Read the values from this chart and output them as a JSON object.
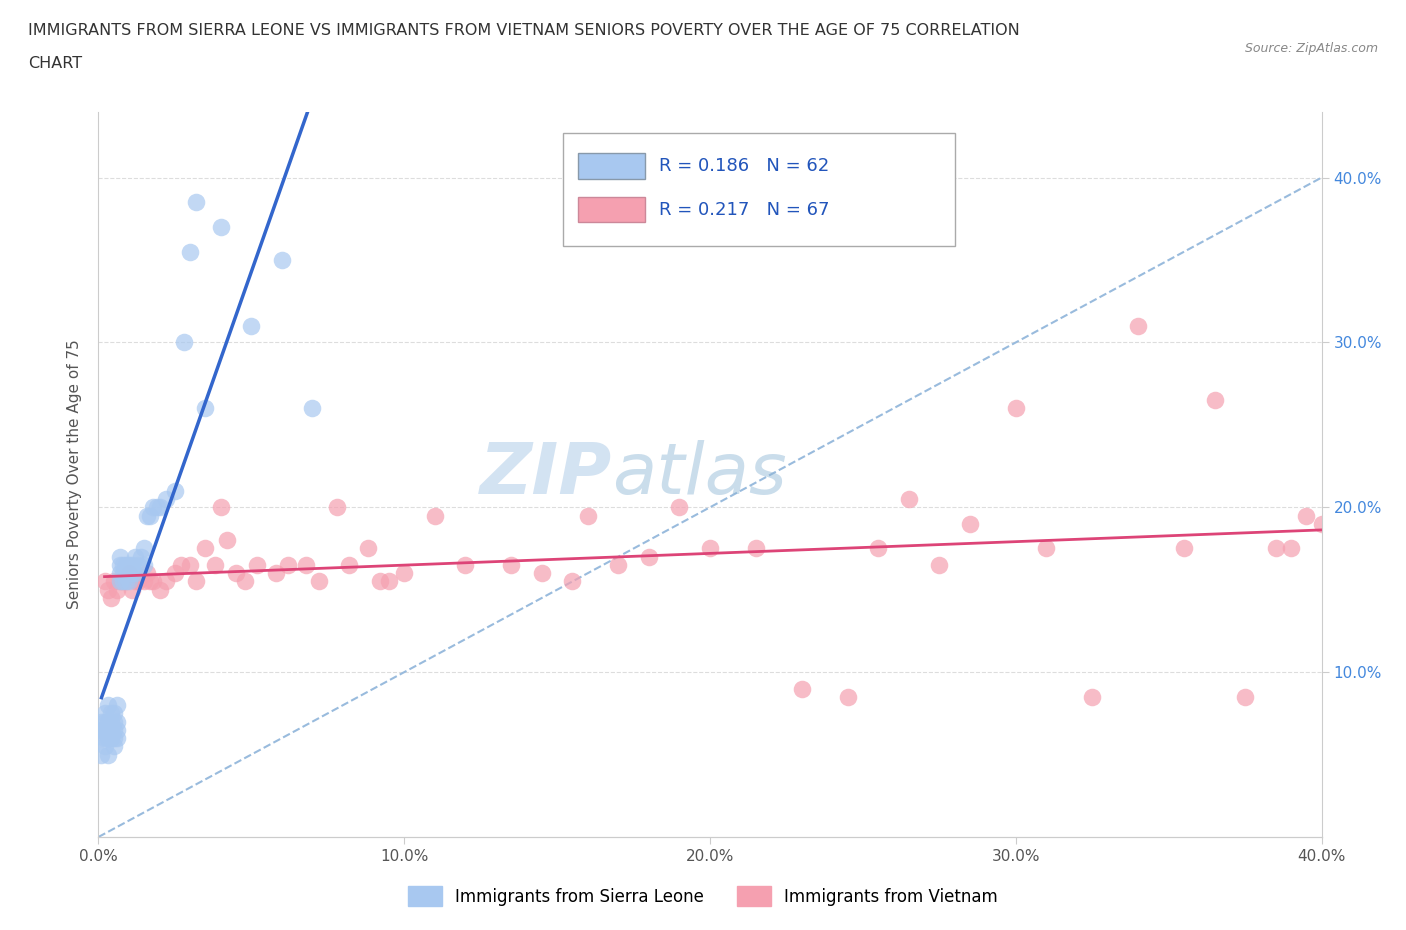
{
  "title_line1": "IMMIGRANTS FROM SIERRA LEONE VS IMMIGRANTS FROM VIETNAM SENIORS POVERTY OVER THE AGE OF 75 CORRELATION",
  "title_line2": "CHART",
  "source": "Source: ZipAtlas.com",
  "ylabel": "Seniors Poverty Over the Age of 75",
  "xlim": [
    0.0,
    0.4
  ],
  "ylim": [
    0.0,
    0.44
  ],
  "xtick_positions": [
    0.0,
    0.1,
    0.2,
    0.3,
    0.4
  ],
  "ytick_positions": [
    0.1,
    0.2,
    0.3,
    0.4
  ],
  "xtick_labels": [
    "0.0%",
    "10.0%",
    "20.0%",
    "30.0%",
    "40.0%"
  ],
  "ytick_labels_right": [
    "10.0%",
    "20.0%",
    "30.0%",
    "40.0%"
  ],
  "color_sierra": "#a8c8f0",
  "color_vietnam": "#f5a0b0",
  "trendline_sierra_color": "#3366cc",
  "trendline_vietnam_color": "#dd4477",
  "diagonal_color": "#99bbdd",
  "R_sierra": 0.186,
  "N_sierra": 62,
  "R_vietnam": 0.217,
  "N_vietnam": 67,
  "legend_label_sierra": "Immigrants from Sierra Leone",
  "legend_label_vietnam": "Immigrants from Vietnam",
  "watermark_zip": "ZIP",
  "watermark_atlas": "atlas",
  "sierra_x": [
    0.001,
    0.001,
    0.001,
    0.001,
    0.002,
    0.002,
    0.002,
    0.002,
    0.002,
    0.003,
    0.003,
    0.003,
    0.003,
    0.003,
    0.004,
    0.004,
    0.004,
    0.004,
    0.005,
    0.005,
    0.005,
    0.005,
    0.005,
    0.006,
    0.006,
    0.006,
    0.006,
    0.007,
    0.007,
    0.007,
    0.007,
    0.008,
    0.008,
    0.008,
    0.009,
    0.009,
    0.01,
    0.01,
    0.01,
    0.011,
    0.011,
    0.012,
    0.012,
    0.013,
    0.014,
    0.015,
    0.015,
    0.016,
    0.017,
    0.018,
    0.019,
    0.02,
    0.022,
    0.025,
    0.028,
    0.03,
    0.032,
    0.035,
    0.04,
    0.05,
    0.06,
    0.07
  ],
  "sierra_y": [
    0.05,
    0.06,
    0.065,
    0.07,
    0.055,
    0.06,
    0.065,
    0.07,
    0.075,
    0.05,
    0.06,
    0.065,
    0.07,
    0.08,
    0.06,
    0.065,
    0.07,
    0.075,
    0.055,
    0.06,
    0.065,
    0.07,
    0.075,
    0.06,
    0.065,
    0.07,
    0.08,
    0.155,
    0.16,
    0.165,
    0.17,
    0.155,
    0.16,
    0.165,
    0.155,
    0.165,
    0.155,
    0.16,
    0.165,
    0.16,
    0.165,
    0.16,
    0.17,
    0.165,
    0.17,
    0.165,
    0.175,
    0.195,
    0.195,
    0.2,
    0.2,
    0.2,
    0.205,
    0.21,
    0.3,
    0.355,
    0.385,
    0.26,
    0.37,
    0.31,
    0.35,
    0.26
  ],
  "vietnam_x": [
    0.002,
    0.003,
    0.004,
    0.005,
    0.006,
    0.007,
    0.008,
    0.009,
    0.01,
    0.011,
    0.012,
    0.013,
    0.015,
    0.016,
    0.017,
    0.018,
    0.02,
    0.022,
    0.025,
    0.027,
    0.03,
    0.032,
    0.035,
    0.038,
    0.04,
    0.042,
    0.045,
    0.048,
    0.052,
    0.058,
    0.062,
    0.068,
    0.072,
    0.078,
    0.082,
    0.088,
    0.092,
    0.095,
    0.1,
    0.11,
    0.12,
    0.135,
    0.145,
    0.155,
    0.16,
    0.17,
    0.18,
    0.19,
    0.2,
    0.215,
    0.23,
    0.245,
    0.255,
    0.265,
    0.275,
    0.285,
    0.3,
    0.31,
    0.325,
    0.34,
    0.355,
    0.365,
    0.375,
    0.385,
    0.39,
    0.395,
    0.4
  ],
  "vietnam_y": [
    0.155,
    0.15,
    0.145,
    0.155,
    0.15,
    0.155,
    0.155,
    0.155,
    0.16,
    0.15,
    0.155,
    0.155,
    0.155,
    0.16,
    0.155,
    0.155,
    0.15,
    0.155,
    0.16,
    0.165,
    0.165,
    0.155,
    0.175,
    0.165,
    0.2,
    0.18,
    0.16,
    0.155,
    0.165,
    0.16,
    0.165,
    0.165,
    0.155,
    0.2,
    0.165,
    0.175,
    0.155,
    0.155,
    0.16,
    0.195,
    0.165,
    0.165,
    0.16,
    0.155,
    0.195,
    0.165,
    0.17,
    0.2,
    0.175,
    0.175,
    0.09,
    0.085,
    0.175,
    0.205,
    0.165,
    0.19,
    0.26,
    0.175,
    0.085,
    0.31,
    0.175,
    0.265,
    0.085,
    0.175,
    0.175,
    0.195,
    0.19
  ]
}
